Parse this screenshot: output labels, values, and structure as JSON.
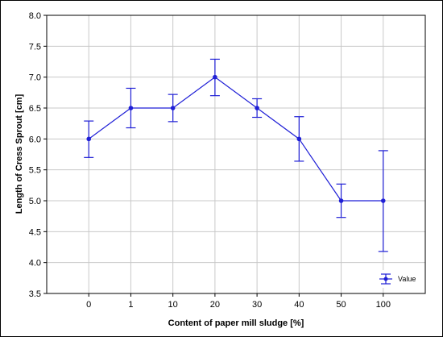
{
  "chart_data": {
    "type": "line",
    "categories": [
      "0",
      "1",
      "10",
      "20",
      "30",
      "40",
      "50",
      "100"
    ],
    "series": [
      {
        "name": "Value",
        "values": [
          6.0,
          6.5,
          6.5,
          7.0,
          6.5,
          6.0,
          5.0,
          5.0
        ],
        "error_low": [
          5.7,
          6.18,
          6.28,
          6.7,
          6.35,
          5.64,
          4.73,
          4.18
        ],
        "error_high": [
          6.29,
          6.82,
          6.72,
          7.29,
          6.65,
          6.36,
          5.27,
          5.81
        ]
      }
    ],
    "xlabel": "Content of paper mill sludge [%]",
    "ylabel": "Length of Cress Sprout [cm]",
    "ylim": [
      3.5,
      8.0
    ],
    "yticks": [
      "3.5",
      "4.0",
      "4.5",
      "5.0",
      "5.5",
      "6.0",
      "6.5",
      "7.0",
      "7.5",
      "8.0"
    ],
    "grid": true,
    "legend_position": "bottom-right",
    "colors": {
      "series": "#1f1fd6",
      "grid": "#c8c8c8",
      "axis": "#000000"
    }
  }
}
